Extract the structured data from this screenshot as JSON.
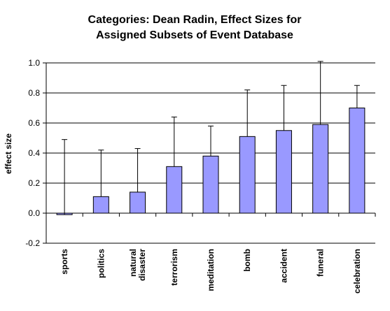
{
  "chart_data": {
    "type": "bar",
    "title": "Categories: Dean Radin, Effect Sizes for Assigned Subsets of Event Database",
    "title_lines": [
      "Categories: Dean Radin, Effect Sizes for",
      "Assigned Subsets of Event Database"
    ],
    "ylabel": "effect size",
    "xlabel": "",
    "ylim": [
      -0.2,
      1.0
    ],
    "yticks": [
      -0.2,
      0.0,
      0.2,
      0.4,
      0.6,
      0.8,
      1.0
    ],
    "ytick_labels": [
      "-0.2",
      "0.0",
      "0.2",
      "0.4",
      "0.6",
      "0.8",
      "1.0"
    ],
    "grid": true,
    "legend": "none",
    "categories": [
      "sports",
      "politics",
      "natural disaster",
      "terrorism",
      "meditation",
      "bomb",
      "accident",
      "funeral",
      "celebration"
    ],
    "category_lines": [
      [
        "sports"
      ],
      [
        "politics"
      ],
      [
        "natural",
        "disaster"
      ],
      [
        "terrorism"
      ],
      [
        "meditation"
      ],
      [
        "bomb"
      ],
      [
        "accident"
      ],
      [
        "funeral"
      ],
      [
        "celebration"
      ]
    ],
    "values": [
      -0.01,
      0.11,
      0.14,
      0.31,
      0.38,
      0.51,
      0.55,
      0.59,
      0.7
    ],
    "error_upper": [
      0.49,
      0.42,
      0.43,
      0.64,
      0.58,
      0.82,
      0.85,
      1.01,
      0.85
    ],
    "colors": {
      "bar_fill": "#9999ff",
      "bar_stroke": "#000000",
      "gridline": "#000000",
      "axis": "#000000",
      "background": "#ffffff"
    }
  }
}
